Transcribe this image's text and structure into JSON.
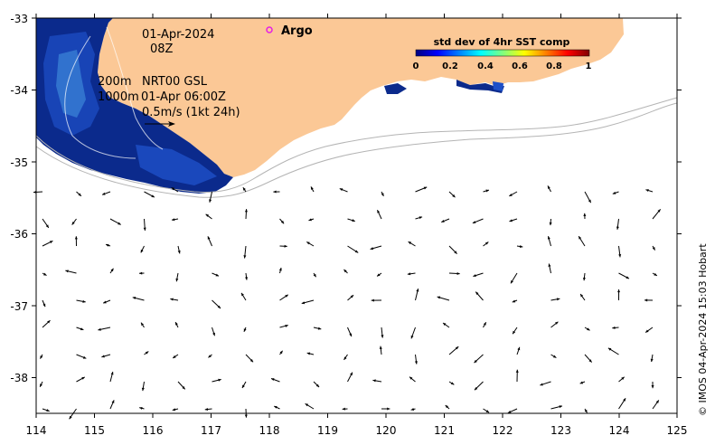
{
  "map": {
    "lon_range": [
      114,
      125
    ],
    "lat_range": [
      -38.5,
      -33
    ],
    "x_ticks": [
      "114",
      "115",
      "116",
      "117",
      "118",
      "119",
      "120",
      "121",
      "122",
      "123",
      "124",
      "125"
    ],
    "y_ticks": [
      "-33",
      "-34",
      "-35",
      "-36",
      "-37",
      "-38"
    ],
    "date_label": "01-Apr-2024",
    "hour_label": "08Z",
    "depth_label_1": "200m",
    "depth_label_2": "1000m",
    "product_label": "NRT00 GSL",
    "velocity_time_label": "01-Apr 06:00Z",
    "velocity_scale_label": "0.5m/s (1kt 24h)",
    "credit": "© IMOS 04-Apr-2024 15:03 Hobart",
    "colors": {
      "land": "#fbc896",
      "sst_deep": "#0b2a8c",
      "sst_mid": "#1e50c8",
      "sst_light": "#4aa0e6",
      "isobath": "#b4b4b4",
      "argo": "#e61ee6"
    }
  },
  "legend": {
    "argo_label": "Argo",
    "colorbar_title": "std dev of 4hr SST comp",
    "colorbar_ticks": [
      "0",
      "0.2",
      "0.4",
      "0.6",
      "0.8",
      "1"
    ]
  }
}
